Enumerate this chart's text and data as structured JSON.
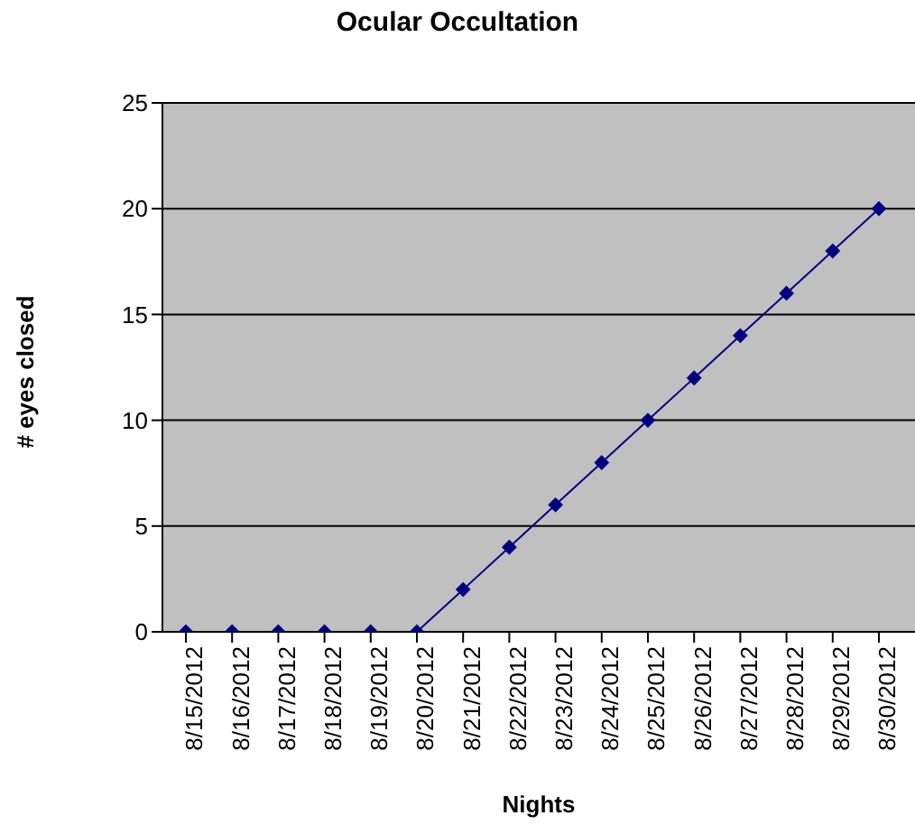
{
  "chart_data": {
    "type": "line",
    "title": "Ocular Occultation",
    "xlabel": "Nights",
    "ylabel": "# eyes closed",
    "categories": [
      "8/15/2012",
      "8/16/2012",
      "8/17/2012",
      "8/18/2012",
      "8/19/2012",
      "8/20/2012",
      "8/21/2012",
      "8/22/2012",
      "8/23/2012",
      "8/24/2012",
      "8/25/2012",
      "8/26/2012",
      "8/27/2012",
      "8/28/2012",
      "8/29/2012",
      "8/30/2012"
    ],
    "series": [
      {
        "color": "#000080",
        "values": [
          0,
          0,
          0,
          0,
          0,
          0,
          2,
          4,
          6,
          8,
          10,
          12,
          14,
          16,
          18,
          20
        ]
      }
    ],
    "ylim": [
      0,
      25
    ],
    "yticks": [
      0,
      5,
      10,
      15,
      20,
      25
    ],
    "grid": "y",
    "marker": "diamond",
    "line_style": "solid",
    "legend": false
  }
}
